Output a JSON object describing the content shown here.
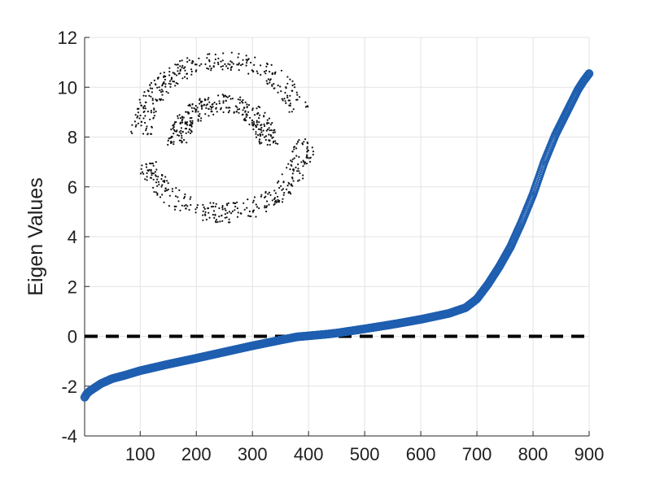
{
  "chart_data": {
    "type": "scatter",
    "title": "",
    "xlabel": "",
    "ylabel": "Eigen Values",
    "xlim": [
      1,
      900
    ],
    "ylim": [
      -4,
      12
    ],
    "xticks": [
      100,
      200,
      300,
      400,
      500,
      600,
      700,
      800,
      900
    ],
    "yticks": [
      -4,
      -2,
      0,
      2,
      4,
      6,
      8,
      10,
      12
    ],
    "grid": true,
    "series": [
      {
        "marker": "open-circle",
        "color": "#1f5fb0",
        "count": 900,
        "points": [
          [
            1,
            -2.45
          ],
          [
            5,
            -2.3
          ],
          [
            10,
            -2.2
          ],
          [
            20,
            -2.05
          ],
          [
            30,
            -1.9
          ],
          [
            50,
            -1.7
          ],
          [
            75,
            -1.55
          ],
          [
            100,
            -1.38
          ],
          [
            150,
            -1.12
          ],
          [
            200,
            -0.88
          ],
          [
            250,
            -0.63
          ],
          [
            300,
            -0.38
          ],
          [
            350,
            -0.15
          ],
          [
            380,
            -0.02
          ],
          [
            400,
            0.02
          ],
          [
            430,
            0.08
          ],
          [
            450,
            0.13
          ],
          [
            500,
            0.3
          ],
          [
            550,
            0.48
          ],
          [
            600,
            0.68
          ],
          [
            650,
            0.92
          ],
          [
            680,
            1.15
          ],
          [
            700,
            1.5
          ],
          [
            720,
            2.1
          ],
          [
            740,
            2.8
          ],
          [
            760,
            3.6
          ],
          [
            780,
            4.6
          ],
          [
            800,
            5.7
          ],
          [
            820,
            7.0
          ],
          [
            840,
            8.1
          ],
          [
            860,
            9.0
          ],
          [
            880,
            9.9
          ],
          [
            890,
            10.25
          ],
          [
            900,
            10.55
          ]
        ]
      }
    ],
    "reference_line": {
      "y": 0,
      "style": "dashed",
      "color": "#000000"
    },
    "inset": {
      "type": "scatter",
      "description_marker": "dot",
      "color": "#111111",
      "clusters": [
        {
          "shape": "upper-arc",
          "cx": 0.0,
          "cy": 0.0,
          "radius": 1.0,
          "start_deg": 20,
          "end_deg": 180
        },
        {
          "shape": "lower-arc",
          "cx": 0.0,
          "cy": 0.0,
          "radius": 1.0,
          "start_deg": 200,
          "end_deg": 360
        },
        {
          "shape": "inner-arc",
          "cx": 0.0,
          "cy": 0.0,
          "radius": 0.55,
          "start_deg": 0,
          "end_deg": 180
        }
      ],
      "points_per_cluster": 300
    }
  }
}
